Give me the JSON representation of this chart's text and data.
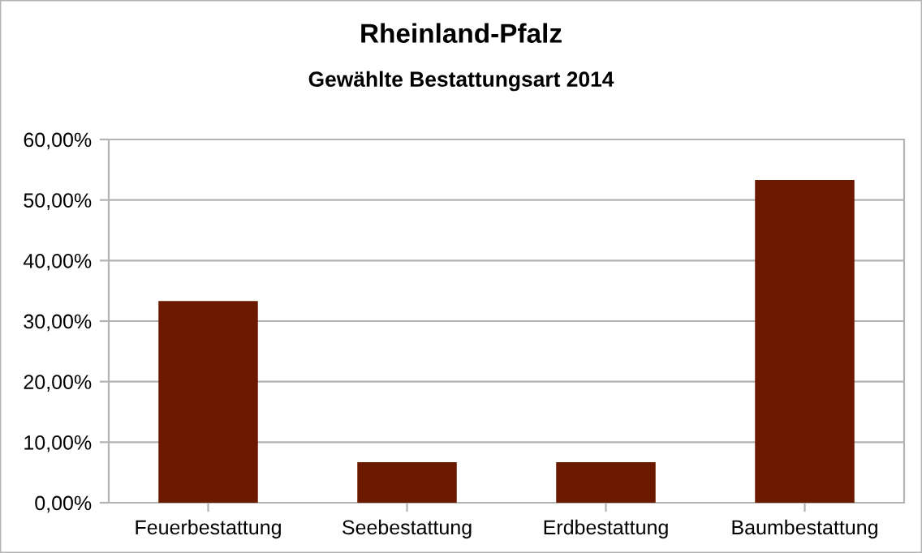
{
  "chart_data": {
    "type": "bar",
    "title": "Rheinland-Pfalz",
    "subtitle": "Gewählte Bestattungsart 2014",
    "categories": [
      "Feuerbestattung",
      "Seebestattung",
      "Erdbestattung",
      "Baumbestattung"
    ],
    "values": [
      33.3,
      6.7,
      6.7,
      53.3
    ],
    "color": "#6b1a00",
    "ylim": [
      0,
      60
    ],
    "yticks": [
      {
        "value": 0,
        "label": "0,00%"
      },
      {
        "value": 10,
        "label": "10,00%"
      },
      {
        "value": 20,
        "label": "20,00%"
      },
      {
        "value": 30,
        "label": "30,00%"
      },
      {
        "value": 40,
        "label": "40,00%"
      },
      {
        "value": 50,
        "label": "50,00%"
      },
      {
        "value": 60,
        "label": "60,00%"
      }
    ],
    "grid": "y",
    "legend": false
  }
}
